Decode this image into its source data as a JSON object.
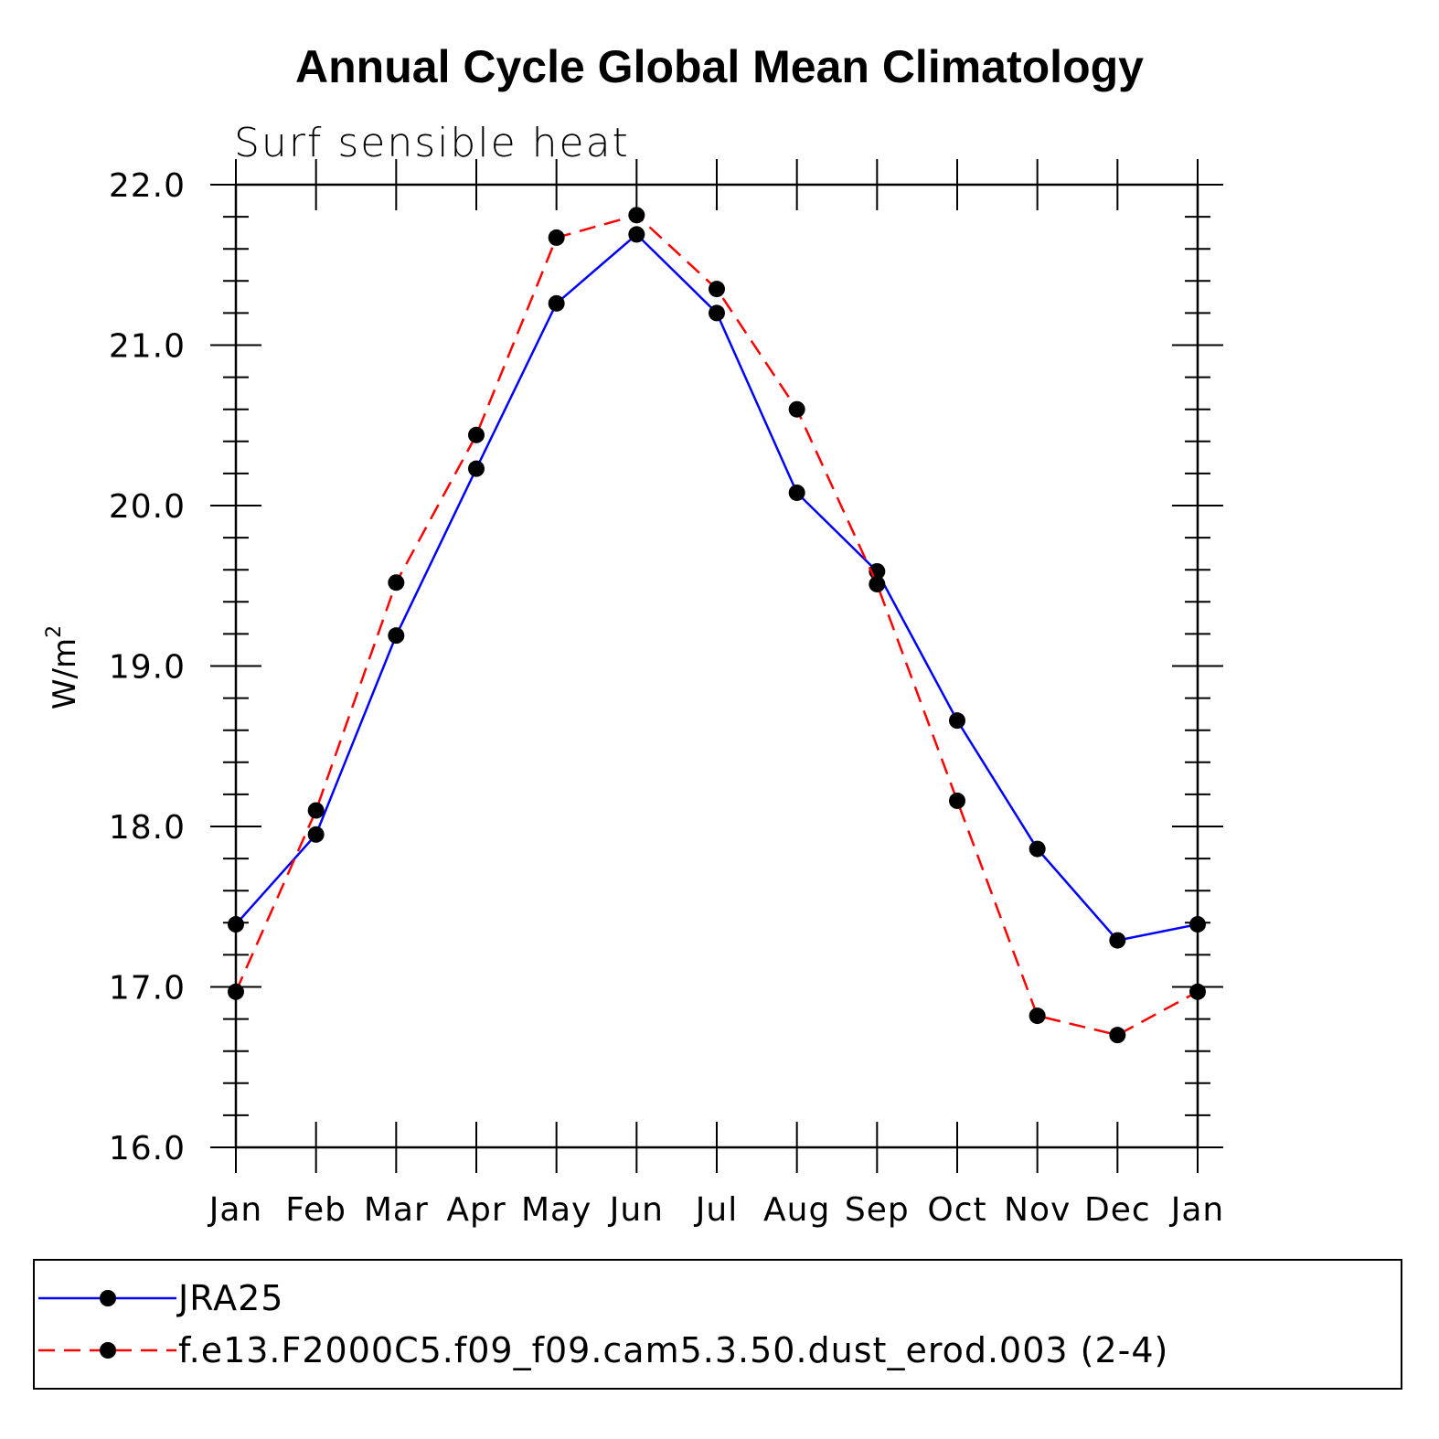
{
  "chart_data": {
    "type": "line",
    "title": "Annual Cycle Global Mean Climatology",
    "subtitle": "Surf  sensible  heat",
    "ylabel_base": "W/m",
    "ylabel_sup": "2",
    "xlabel": "",
    "categories": [
      "Jan",
      "Feb",
      "Mar",
      "Apr",
      "May",
      "Jun",
      "Jul",
      "Aug",
      "Sep",
      "Oct",
      "Nov",
      "Dec",
      "Jan"
    ],
    "ylim": [
      16.0,
      22.0
    ],
    "yticks": [
      "16.0",
      "17.0",
      "18.0",
      "19.0",
      "20.0",
      "21.0",
      "22.0"
    ],
    "series": [
      {
        "name": "JRA25",
        "color": "#0000ff",
        "dash": "solid",
        "values": [
          17.39,
          17.95,
          19.19,
          20.23,
          21.26,
          21.69,
          21.2,
          20.08,
          19.59,
          18.66,
          17.86,
          17.29,
          17.39
        ]
      },
      {
        "name": "f.e13.F2000C5.f09_f09.cam5.3.50.dust_erod.003 (2-4)",
        "color": "#ff0000",
        "dash": "dashed",
        "values": [
          16.97,
          18.1,
          19.52,
          20.44,
          21.67,
          21.81,
          21.35,
          20.6,
          19.51,
          18.16,
          16.82,
          16.7,
          16.97
        ]
      }
    ],
    "legend_position": "bottom"
  }
}
